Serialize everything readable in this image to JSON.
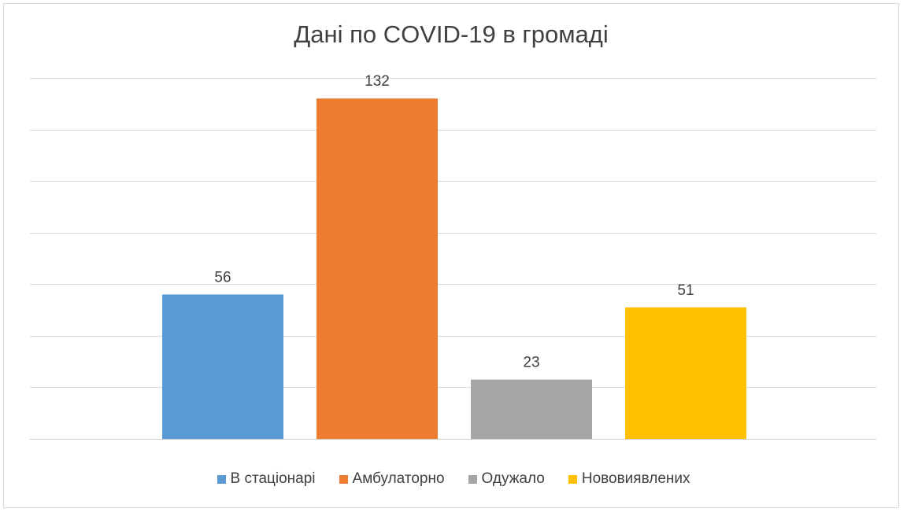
{
  "chart_data": {
    "type": "bar",
    "title": "Дані по COVID-19 в громаді",
    "xlabel": "",
    "ylabel": "",
    "ylim": [
      0,
      140
    ],
    "grid": true,
    "legend_position": "bottom",
    "categories": [
      "В стаціонарі",
      "Амбулаторно",
      "Одужало",
      "Нововиявлених"
    ],
    "values": [
      56,
      132,
      23,
      51
    ],
    "colors": [
      "#5b9bd5",
      "#ed7d31",
      "#a5a5a5",
      "#ffc000"
    ],
    "data_labels": [
      "56",
      "132",
      "23",
      "51"
    ]
  },
  "legend": {
    "items": [
      {
        "label": "В стаціонарі",
        "color": "#5b9bd5"
      },
      {
        "label": "Амбулаторно",
        "color": "#ed7d31"
      },
      {
        "label": "Одужало",
        "color": "#a5a5a5"
      },
      {
        "label": "Нововиявлених",
        "color": "#ffc000"
      }
    ]
  }
}
